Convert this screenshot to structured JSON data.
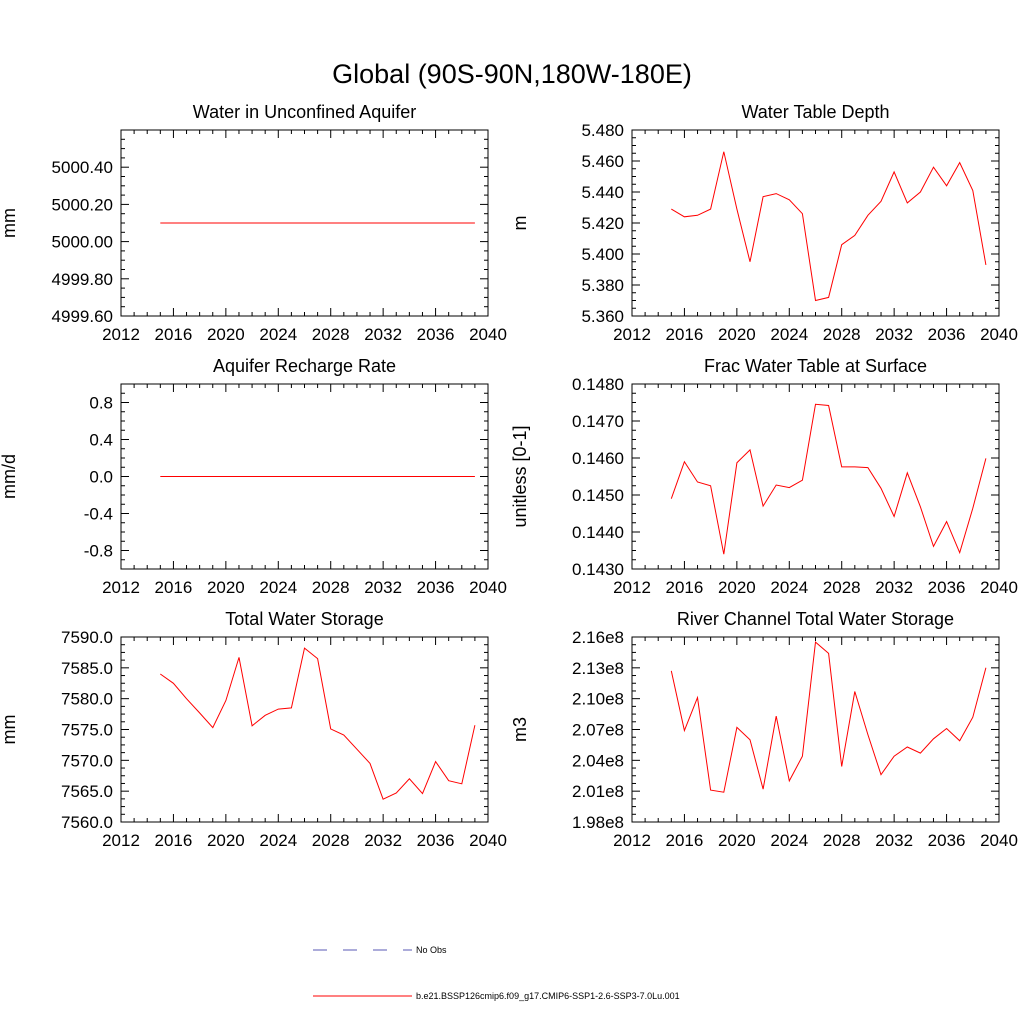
{
  "page": {
    "title": "Global (90S-90N,180W-180E)"
  },
  "legend": {
    "items": [
      {
        "label": "No Obs",
        "color": "#5a5ab4",
        "dash": true
      },
      {
        "label": "b.e21.BSSP126cmip6.f09_g17.CMIP6-SSP1-2.6-SSP3-7.0Lu.001",
        "color": "#ff0000",
        "dash": false
      }
    ]
  },
  "chart_data": [
    {
      "type": "line",
      "title": "Water in Unconfined Aquifer",
      "ylabel": "mm",
      "xlim": [
        2012,
        2040
      ],
      "xticks": [
        "2012",
        "2016",
        "2020",
        "2024",
        "2028",
        "2032",
        "2036",
        "2040"
      ],
      "ylim": [
        4999.6,
        5000.6
      ],
      "yticks": [
        "4999.60",
        "4999.80",
        "5000.00",
        "5000.20",
        "5000.40"
      ],
      "x": [
        2015,
        2016,
        2017,
        2018,
        2019,
        2020,
        2021,
        2022,
        2023,
        2024,
        2025,
        2026,
        2027,
        2028,
        2029,
        2030,
        2031,
        2032,
        2033,
        2034,
        2035,
        2036,
        2037,
        2038,
        2039
      ],
      "series": [
        {
          "color": "#ff0000",
          "values": [
            5000.1,
            5000.1,
            5000.1,
            5000.1,
            5000.1,
            5000.1,
            5000.1,
            5000.1,
            5000.1,
            5000.1,
            5000.1,
            5000.1,
            5000.1,
            5000.1,
            5000.1,
            5000.1,
            5000.1,
            5000.1,
            5000.1,
            5000.1,
            5000.1,
            5000.1,
            5000.1,
            5000.1,
            5000.1
          ]
        }
      ]
    },
    {
      "type": "line",
      "title": "Water Table Depth",
      "ylabel": "m",
      "xlim": [
        2012,
        2040
      ],
      "xticks": [
        "2012",
        "2016",
        "2020",
        "2024",
        "2028",
        "2032",
        "2036",
        "2040"
      ],
      "ylim": [
        5.36,
        5.48
      ],
      "yticks": [
        "5.360",
        "5.380",
        "5.400",
        "5.420",
        "5.440",
        "5.460",
        "5.480"
      ],
      "x": [
        2015,
        2016,
        2017,
        2018,
        2019,
        2020,
        2021,
        2022,
        2023,
        2024,
        2025,
        2026,
        2027,
        2028,
        2029,
        2030,
        2031,
        2032,
        2033,
        2034,
        2035,
        2036,
        2037,
        2038,
        2039
      ],
      "series": [
        {
          "color": "#ff0000",
          "values": [
            5.429,
            5.424,
            5.425,
            5.429,
            5.466,
            5.429,
            5.395,
            5.437,
            5.439,
            5.435,
            5.426,
            5.37,
            5.372,
            5.406,
            5.412,
            5.425,
            5.434,
            5.453,
            5.433,
            5.44,
            5.456,
            5.444,
            5.459,
            5.441,
            5.393
          ]
        }
      ]
    },
    {
      "type": "line",
      "title": "Aquifer Recharge Rate",
      "ylabel": "mm/d",
      "xlim": [
        2012,
        2040
      ],
      "xticks": [
        "2012",
        "2016",
        "2020",
        "2024",
        "2028",
        "2032",
        "2036",
        "2040"
      ],
      "ylim": [
        -1.0,
        1.0
      ],
      "yticks": [
        "-0.8",
        "-0.4",
        "0.0",
        "0.4",
        "0.8"
      ],
      "x": [
        2015,
        2016,
        2017,
        2018,
        2019,
        2020,
        2021,
        2022,
        2023,
        2024,
        2025,
        2026,
        2027,
        2028,
        2029,
        2030,
        2031,
        2032,
        2033,
        2034,
        2035,
        2036,
        2037,
        2038,
        2039
      ],
      "series": [
        {
          "color": "#ff0000",
          "values": [
            0,
            0,
            0,
            0,
            0,
            0,
            0,
            0,
            0,
            0,
            0,
            0,
            0,
            0,
            0,
            0,
            0,
            0,
            0,
            0,
            0,
            0,
            0,
            0,
            0
          ]
        }
      ]
    },
    {
      "type": "line",
      "title": "Frac Water Table at Surface",
      "ylabel": "unitless [0-1]",
      "xlim": [
        2012,
        2040
      ],
      "xticks": [
        "2012",
        "2016",
        "2020",
        "2024",
        "2028",
        "2032",
        "2036",
        "2040"
      ],
      "ylim": [
        0.143,
        0.148
      ],
      "yticks": [
        "0.1430",
        "0.1440",
        "0.1450",
        "0.1460",
        "0.1470",
        "0.1480"
      ],
      "x": [
        2015,
        2016,
        2017,
        2018,
        2019,
        2020,
        2021,
        2022,
        2023,
        2024,
        2025,
        2026,
        2027,
        2028,
        2029,
        2030,
        2031,
        2032,
        2033,
        2034,
        2035,
        2036,
        2037,
        2038,
        2039
      ],
      "series": [
        {
          "color": "#ff0000",
          "values": [
            0.1449,
            0.1459,
            0.14535,
            0.14525,
            0.1434,
            0.14587,
            0.14622,
            0.1447,
            0.14527,
            0.1452,
            0.1454,
            0.14745,
            0.14742,
            0.14576,
            0.14576,
            0.14574,
            0.14518,
            0.14442,
            0.1456,
            0.14468,
            0.14361,
            0.14428,
            0.14344,
            0.14464,
            0.14599
          ]
        }
      ]
    },
    {
      "type": "line",
      "title": "Total Water Storage",
      "ylabel": "mm",
      "xlim": [
        2012,
        2040
      ],
      "xticks": [
        "2012",
        "2016",
        "2020",
        "2024",
        "2028",
        "2032",
        "2036",
        "2040"
      ],
      "ylim": [
        7560.0,
        7590.0
      ],
      "yticks": [
        "7560.0",
        "7565.0",
        "7570.0",
        "7575.0",
        "7580.0",
        "7585.0",
        "7590.0"
      ],
      "x": [
        2015,
        2016,
        2017,
        2018,
        2019,
        2020,
        2021,
        2022,
        2023,
        2024,
        2025,
        2026,
        2027,
        2028,
        2029,
        2030,
        2031,
        2032,
        2033,
        2034,
        2035,
        2036,
        2037,
        2038,
        2039
      ],
      "series": [
        {
          "color": "#ff0000",
          "values": [
            7584.0,
            7582.5,
            7580.0,
            7577.7,
            7575.3,
            7579.7,
            7586.7,
            7575.6,
            7577.3,
            7578.3,
            7578.5,
            7588.2,
            7586.5,
            7575.1,
            7574.1,
            7571.8,
            7569.5,
            7563.7,
            7564.7,
            7567.0,
            7564.6,
            7569.8,
            7566.7,
            7566.2,
            7575.7
          ]
        }
      ]
    },
    {
      "type": "line",
      "title": "River Channel Total Water Storage",
      "ylabel": "m3",
      "xlim": [
        2012,
        2040
      ],
      "xticks": [
        "2012",
        "2016",
        "2020",
        "2024",
        "2028",
        "2032",
        "2036",
        "2040"
      ],
      "ylim": [
        198000000.0,
        216000000.0
      ],
      "yticks": [
        "1.98e8",
        "2.01e8",
        "2.04e8",
        "2.07e8",
        "2.10e8",
        "2.13e8",
        "2.16e8"
      ],
      "x": [
        2015,
        2016,
        2017,
        2018,
        2019,
        2020,
        2021,
        2022,
        2023,
        2024,
        2025,
        2026,
        2027,
        2028,
        2029,
        2030,
        2031,
        2032,
        2033,
        2034,
        2035,
        2036,
        2037,
        2038,
        2039
      ],
      "series": [
        {
          "color": "#ff0000",
          "values": [
            212700000.0,
            206900000.0,
            210100000.0,
            201100000.0,
            200900000.0,
            207200000.0,
            206000000.0,
            201200000.0,
            208300000.0,
            202000000.0,
            204400000.0,
            215500000.0,
            214400000.0,
            203400000.0,
            210700000.0,
            206500000.0,
            202600000.0,
            204400000.0,
            205300000.0,
            204700000.0,
            206100000.0,
            207100000.0,
            205900000.0,
            208200000.0,
            213000000.0
          ]
        }
      ]
    }
  ]
}
